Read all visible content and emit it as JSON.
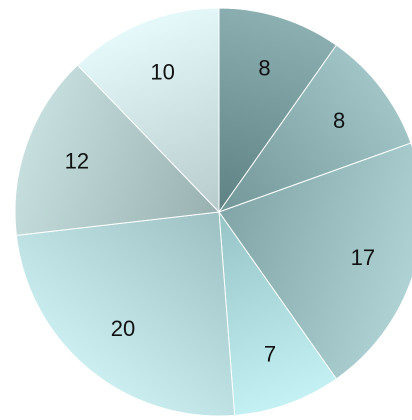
{
  "chart_data": {
    "type": "pie",
    "title": "",
    "start": "12 o'clock",
    "direction": "clockwise",
    "slices": [
      {
        "label": "8",
        "value": 8,
        "color": "#7a9ea0"
      },
      {
        "label": "8",
        "value": 8,
        "color": "#8fb3b5"
      },
      {
        "label": "17",
        "value": 17,
        "color": "#9dc1c3"
      },
      {
        "label": "7",
        "value": 7,
        "color": "#b2dfe1"
      },
      {
        "label": "20",
        "value": 20,
        "color": "#b9dcdf"
      },
      {
        "label": "12",
        "value": 12,
        "color": "#b4cdcc"
      },
      {
        "label": "10",
        "value": 10,
        "color": "#d3e7e9"
      }
    ]
  }
}
